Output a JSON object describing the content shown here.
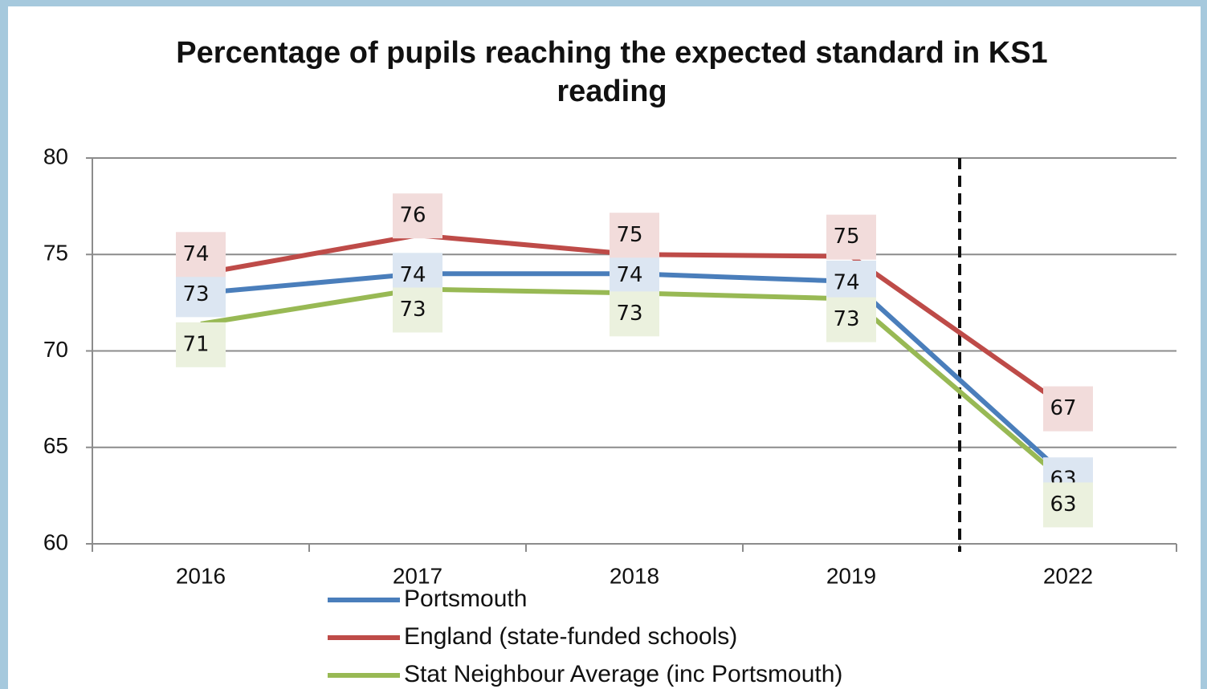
{
  "chart_data": {
    "type": "line",
    "title": "Percentage of pupils reaching the expected standard in KS1 reading",
    "categories": [
      "2016",
      "2017",
      "2018",
      "2019",
      "2022"
    ],
    "series": [
      {
        "name": "Portsmouth",
        "color": "#4a7ebb",
        "label_bg": "#dce6f2",
        "values": [
          73,
          74,
          74,
          73.6,
          63.4
        ],
        "value_labels": [
          "73",
          "74",
          "74",
          "74",
          "63"
        ]
      },
      {
        "name": "England (state-funded schools)",
        "color": "#be4b48",
        "label_bg": "#f2dcdb",
        "values": [
          74,
          76,
          75,
          74.9,
          67
        ],
        "value_labels": [
          "74",
          "76",
          "75",
          "75",
          "67"
        ]
      },
      {
        "name": "Stat Neighbour Average (inc Portsmouth)",
        "color": "#98b954",
        "label_bg": "#ebf1de",
        "values": [
          71.4,
          73.2,
          73,
          72.7,
          63.1
        ],
        "value_labels": [
          "71",
          "73",
          "73",
          "73",
          "63"
        ]
      }
    ],
    "ylim": [
      60,
      80
    ],
    "yticks": [
      60,
      65,
      70,
      75,
      80
    ],
    "grid": true
  }
}
